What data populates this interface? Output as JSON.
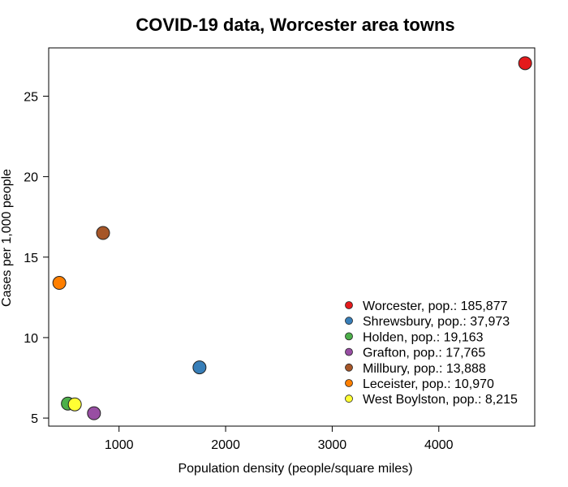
{
  "chart_data": {
    "type": "scatter",
    "title": "COVID-19 data, Worcester area towns",
    "xlabel": "Population density (people/square miles)",
    "ylabel": "Cases per 1,000 people",
    "xlim": [
      340,
      4900
    ],
    "ylim": [
      4.5,
      28.0
    ],
    "xticks": [
      1000,
      2000,
      3000,
      4000
    ],
    "yticks": [
      5,
      10,
      15,
      20,
      25
    ],
    "grid": false,
    "legend_position": "bottom-right",
    "series": [
      {
        "name": "Worcester, pop.: 185,877",
        "color": "#e41a1c",
        "x": 4810,
        "y": 27.05
      },
      {
        "name": "Shrewsbury, pop.: 37,973",
        "color": "#377eb8",
        "x": 1755,
        "y": 8.15
      },
      {
        "name": "Holden, pop.: 19,163",
        "color": "#4daf4a",
        "x": 520,
        "y": 5.9
      },
      {
        "name": "Grafton, pop.: 17,765",
        "color": "#984ea3",
        "x": 765,
        "y": 5.3
      },
      {
        "name": "Millbury, pop.: 13,888",
        "color": "#a65628",
        "x": 850,
        "y": 16.5
      },
      {
        "name": "Leceister, pop.: 10,970",
        "color": "#ff7f00",
        "x": 440,
        "y": 13.4
      },
      {
        "name": "West Boylston, pop.: 8,215",
        "color": "#ffff33",
        "x": 585,
        "y": 5.85
      }
    ]
  }
}
